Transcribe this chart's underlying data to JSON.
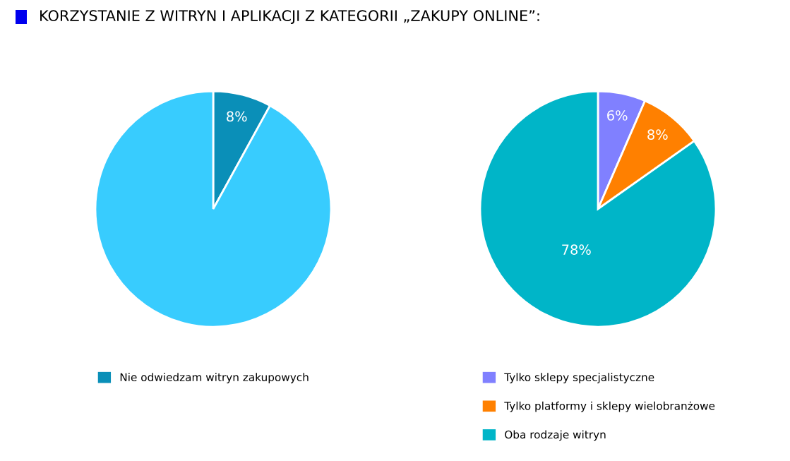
{
  "chart_data": [
    {
      "type": "pie",
      "title": "KORZYSTANIE Z WITRYN I APLIKACJI Z KATEGORII „ZAKUPY ONLINE”:",
      "categories": [
        "Nie odwiedzam witryn zakupowych",
        null
      ],
      "values": [
        8,
        92
      ],
      "colors": [
        "#0a8fb8",
        "#38ccfe"
      ],
      "value_labels": [
        "8%",
        null
      ],
      "legend": "bottom"
    },
    {
      "type": "pie",
      "categories": [
        "Tylko sklepy specjalistyczne",
        "Tylko platformy i sklepy wielobranżowe",
        "Oba rodzaje witryn"
      ],
      "values": [
        6,
        8,
        78
      ],
      "colors": [
        "#8080ff",
        "#ff8000",
        "#00b5c8"
      ],
      "value_labels": [
        "6%",
        "8%",
        "78%"
      ],
      "legend": "bottom"
    }
  ]
}
